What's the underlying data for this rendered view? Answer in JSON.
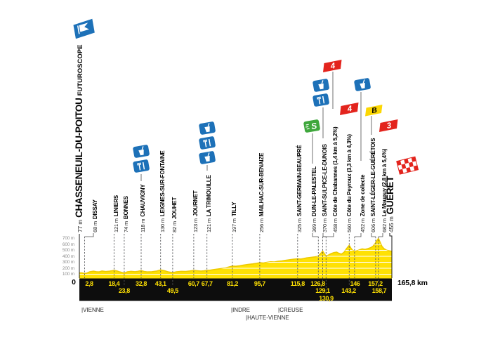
{
  "colors": {
    "yellow": "#FFE103",
    "yellow_edge": "#EDC900",
    "blue": "#1D71B8",
    "green": "#3FA73C",
    "red": "#E3241D",
    "flag_yellow": "#FCD703",
    "bar_black": "#0d0d0d",
    "grid_white": "#ffffff"
  },
  "axis": {
    "elevation_labels": [
      "700 m",
      "600 m",
      "500 m",
      "400 m",
      "300 m",
      "200 m",
      "100 m"
    ],
    "origin_label": "0",
    "total_label": "165,8 km"
  },
  "departments": [
    {
      "label": "|VIENNE"
    },
    {
      "label": "|INDRE"
    },
    {
      "label": "|CREUSE"
    },
    {
      "label": "|HAUTE-VIENNE"
    }
  ],
  "waypoints": [
    {
      "elev": "77 m",
      "name": "CHASSENEUIL-DU-POITOU",
      "suffix": "FUTUROSCOPE",
      "km": 0,
      "row": 0,
      "type": "start"
    },
    {
      "elev": "68 m",
      "name": "DISSAY",
      "km_label": "2,8",
      "km": 2.8,
      "row": 1
    },
    {
      "elev": "121 m",
      "name": "LINIERS",
      "km_label": "18,4",
      "km": 18.4,
      "row": 1
    },
    {
      "elev": "74 m",
      "name": "BONNES",
      "km_label": "23,8",
      "km": 23.8,
      "row": 2
    },
    {
      "elev": "118 m",
      "name": "CHAUVIGNY",
      "km_label": "32,8",
      "km": 32.8,
      "row": 1
    },
    {
      "elev": "130 m",
      "name": "LEIGNES-SUR-FONTAINE",
      "km_label": "43,1",
      "km": 43.1,
      "row": 1
    },
    {
      "elev": "82 m",
      "name": "JOUHET",
      "km_label": "49,5",
      "km": 49.5,
      "row": 2
    },
    {
      "elev": "123 m",
      "name": "JOURNET",
      "km_label": "60,7",
      "km": 60.7,
      "row": 1
    },
    {
      "elev": "121 m",
      "name": "LA TRIMOUILLE",
      "km_label": "67,7",
      "km": 67.7,
      "row": 1
    },
    {
      "elev": "197 m",
      "name": "TILLY",
      "km_label": "81,2",
      "km": 81.2,
      "row": 1
    },
    {
      "elev": "256 m",
      "name": "MAILHAC-SUR-BENAIZE",
      "km_label": "95,7",
      "km": 95.7,
      "row": 1
    },
    {
      "elev": "325 m",
      "name": "SAINT-GERMAIN-BEAUPRÉ",
      "km_label": "115,8",
      "km": 115.8,
      "row": 1
    },
    {
      "elev": "369 m",
      "name": "DUN-LE-PALESTEL",
      "km_label": "126,8",
      "km": 126.8,
      "row": 1,
      "badge_text": "S"
    },
    {
      "elev": "458 m",
      "name": "Côte de Chabannes (1,4 km à 5,2%)",
      "km_label": "129,1",
      "km": 129.1,
      "row": 2,
      "badge_text": "4"
    },
    {
      "elev": "370 m",
      "name": "SAINT-SULPICE-LE-DUNOIS",
      "km_label": "130,9",
      "km": 130.9,
      "row": 3
    },
    {
      "elev": "560 m",
      "name": "Côte du Peyroux (3,3 km à 4,3%)",
      "km_label": "143,2",
      "km": 143.2,
      "row": 2,
      "badge_text": "4"
    },
    {
      "elev": "452 m",
      "name": "Zone de collecte",
      "km_label": "146",
      "km": 146,
      "row": 1
    },
    {
      "elev": "606 m",
      "name": "SAINT-LÉGER-LE-GUÉRÉTOIS",
      "km_label": "157,2",
      "km": 157.2,
      "row": 1,
      "badge_text": "B"
    },
    {
      "elev": "682 m",
      "name": "Le Maupuy (2,8 km à 5,4%)",
      "km_label": "158,7",
      "km": 158.7,
      "row": 2,
      "badge_text": "3"
    },
    {
      "elev": "455 m",
      "name": "GUÉRET",
      "km_label": "165,8 km",
      "km": 165.8,
      "row": 0,
      "type": "finish"
    }
  ],
  "chart_data": {
    "type": "area",
    "xlabel": "km",
    "ylabel": "m",
    "x_range_km": [
      0,
      165.8
    ],
    "y_ticks_m": [
      100,
      200,
      300,
      400,
      500,
      600,
      700
    ],
    "total_distance_km": 165.8,
    "grid": "horizontal-white-lines-inside-area",
    "profile": [
      [
        0,
        77
      ],
      [
        1.2,
        80
      ],
      [
        2.8,
        68
      ],
      [
        4,
        75
      ],
      [
        5.5,
        98
      ],
      [
        7.5,
        108
      ],
      [
        9,
        100
      ],
      [
        10.5,
        96
      ],
      [
        12,
        110
      ],
      [
        14,
        102
      ],
      [
        16,
        108
      ],
      [
        18.4,
        121
      ],
      [
        20,
        112
      ],
      [
        21.5,
        96
      ],
      [
        23.8,
        74
      ],
      [
        25.5,
        98
      ],
      [
        27.5,
        106
      ],
      [
        29.5,
        100
      ],
      [
        31,
        106
      ],
      [
        32.8,
        118
      ],
      [
        34.3,
        104
      ],
      [
        36,
        96
      ],
      [
        38.5,
        100
      ],
      [
        41,
        110
      ],
      [
        43.1,
        130
      ],
      [
        45,
        118
      ],
      [
        47,
        98
      ],
      [
        49.5,
        82
      ],
      [
        51.5,
        98
      ],
      [
        54,
        106
      ],
      [
        56.5,
        104
      ],
      [
        58.5,
        112
      ],
      [
        60.7,
        123
      ],
      [
        62.5,
        116
      ],
      [
        64.5,
        110
      ],
      [
        66,
        114
      ],
      [
        67.7,
        121
      ],
      [
        69.5,
        126
      ],
      [
        71.5,
        138
      ],
      [
        74,
        148
      ],
      [
        76.5,
        160
      ],
      [
        78.5,
        174
      ],
      [
        81.2,
        197
      ],
      [
        83,
        194
      ],
      [
        85,
        202
      ],
      [
        87,
        214
      ],
      [
        89.5,
        226
      ],
      [
        92,
        236
      ],
      [
        94,
        246
      ],
      [
        95.7,
        256
      ],
      [
        97.5,
        250
      ],
      [
        99.5,
        262
      ],
      [
        101.5,
        272
      ],
      [
        103.5,
        270
      ],
      [
        105.5,
        282
      ],
      [
        107.5,
        288
      ],
      [
        109.5,
        298
      ],
      [
        111.5,
        308
      ],
      [
        113.5,
        316
      ],
      [
        115.8,
        325
      ],
      [
        117.5,
        320
      ],
      [
        119,
        330
      ],
      [
        120.5,
        340
      ],
      [
        122,
        346
      ],
      [
        123.5,
        352
      ],
      [
        125,
        358
      ],
      [
        126.8,
        369
      ],
      [
        127.8,
        410
      ],
      [
        129.1,
        458
      ],
      [
        130.2,
        402
      ],
      [
        130.9,
        370
      ],
      [
        132,
        388
      ],
      [
        133.5,
        415
      ],
      [
        135,
        432
      ],
      [
        136.5,
        440
      ],
      [
        137.8,
        420
      ],
      [
        139,
        406
      ],
      [
        140.5,
        440
      ],
      [
        141.8,
        505
      ],
      [
        143.2,
        560
      ],
      [
        144.3,
        500
      ],
      [
        145.2,
        468
      ],
      [
        146,
        452
      ],
      [
        147.2,
        462
      ],
      [
        148.5,
        480
      ],
      [
        150,
        498
      ],
      [
        151.5,
        490
      ],
      [
        153,
        502
      ],
      [
        154.5,
        518
      ],
      [
        155.8,
        545
      ],
      [
        156.8,
        585
      ],
      [
        157.2,
        606
      ],
      [
        158,
        650
      ],
      [
        158.7,
        682
      ],
      [
        159.5,
        618
      ],
      [
        160.5,
        545
      ],
      [
        161.5,
        505
      ],
      [
        162.8,
        478
      ],
      [
        164,
        465
      ],
      [
        165.8,
        455
      ]
    ]
  }
}
